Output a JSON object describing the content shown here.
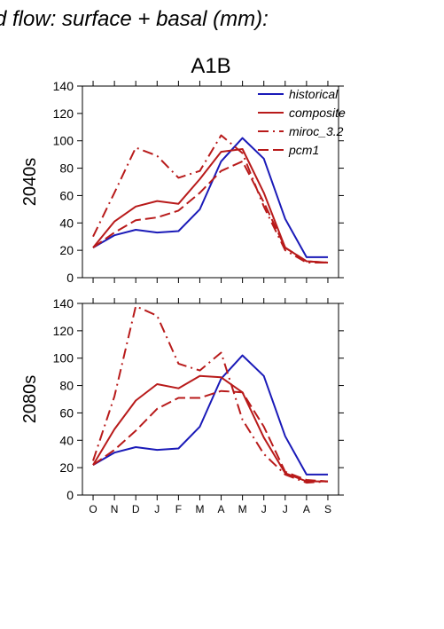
{
  "figure": {
    "title": "d flow: surface + basal (mm):",
    "scenario": "A1B"
  },
  "colors": {
    "historical": "#1a1ab8",
    "projection": "#b81a1a",
    "axis": "#000000"
  },
  "chart_data": [
    {
      "type": "line",
      "panel_label": "2040s",
      "categories": [
        "O",
        "N",
        "D",
        "J",
        "F",
        "M",
        "A",
        "M",
        "J",
        "J",
        "A",
        "S"
      ],
      "ylim": [
        0,
        140
      ],
      "yticks": [
        0,
        20,
        40,
        60,
        80,
        100,
        120,
        140
      ],
      "legend_position": "top-right",
      "series": [
        {
          "name": "historical",
          "style": "solid",
          "color": "#1a1ab8",
          "values": [
            22,
            31,
            35,
            33,
            34,
            50,
            85,
            102,
            87,
            43,
            15,
            15
          ]
        },
        {
          "name": "composite",
          "style": "solid",
          "color": "#b81a1a",
          "values": [
            22,
            41,
            52,
            56,
            54,
            72,
            92,
            94,
            62,
            22,
            12,
            11
          ]
        },
        {
          "name": "miroc_3.2",
          "style": "dashdot",
          "color": "#b81a1a",
          "values": [
            30,
            62,
            95,
            89,
            73,
            78,
            104,
            91,
            52,
            20,
            11,
            11
          ]
        },
        {
          "name": "pcm1",
          "style": "dashed",
          "color": "#b81a1a",
          "values": [
            22,
            33,
            42,
            44,
            49,
            62,
            78,
            85,
            55,
            22,
            12,
            11
          ]
        }
      ]
    },
    {
      "type": "line",
      "panel_label": "2080s",
      "categories": [
        "O",
        "N",
        "D",
        "J",
        "F",
        "M",
        "A",
        "M",
        "J",
        "J",
        "A",
        "S"
      ],
      "ylim": [
        0,
        140
      ],
      "yticks": [
        0,
        20,
        40,
        60,
        80,
        100,
        120,
        140
      ],
      "series": [
        {
          "name": "historical",
          "style": "solid",
          "color": "#1a1ab8",
          "values": [
            22,
            31,
            35,
            33,
            34,
            50,
            85,
            102,
            87,
            43,
            15,
            15
          ]
        },
        {
          "name": "composite",
          "style": "solid",
          "color": "#b81a1a",
          "values": [
            22,
            48,
            69,
            81,
            78,
            87,
            86,
            75,
            42,
            16,
            10,
            10
          ]
        },
        {
          "name": "miroc_3.2",
          "style": "dashdot",
          "color": "#b81a1a",
          "values": [
            25,
            72,
            138,
            131,
            96,
            91,
            104,
            55,
            30,
            15,
            9,
            10
          ]
        },
        {
          "name": "pcm1",
          "style": "dashed",
          "color": "#b81a1a",
          "values": [
            22,
            33,
            47,
            63,
            71,
            71,
            76,
            75,
            50,
            17,
            11,
            10
          ]
        }
      ]
    }
  ]
}
